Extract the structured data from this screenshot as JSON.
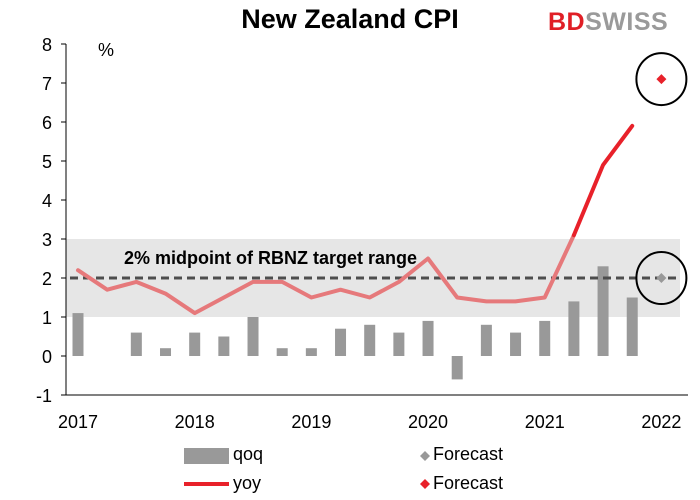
{
  "title": "New Zealand CPI",
  "brand": {
    "part1": "BD",
    "part2": "SWISS"
  },
  "colors": {
    "brand_red": "#e01f26",
    "brand_grey": "#9a9a9a"
  },
  "chart_data": {
    "type": "bar",
    "title": "New Zealand CPI",
    "unit_label": "%",
    "ylim": [
      -1,
      8
    ],
    "y_ticks": [
      -1,
      0,
      1,
      2,
      3,
      4,
      5,
      6,
      7,
      8
    ],
    "x_ticks": [
      "2017",
      "2018",
      "2019",
      "2020",
      "2021",
      "2022"
    ],
    "grid": false,
    "target_band": {
      "from": 1,
      "to": 3,
      "color": "#e6e6e6"
    },
    "midpoint_line": {
      "value": 2,
      "label": "2% midpoint of RBNZ target range",
      "color": "#4d4d4d"
    },
    "quarters": [
      "2017Q1",
      "2017Q2",
      "2017Q3",
      "2017Q4",
      "2018Q1",
      "2018Q2",
      "2018Q3",
      "2018Q4",
      "2019Q1",
      "2019Q2",
      "2019Q3",
      "2019Q4",
      "2020Q1",
      "2020Q2",
      "2020Q3",
      "2020Q4",
      "2021Q1",
      "2021Q2",
      "2021Q3",
      "2021Q4",
      "2022Q1"
    ],
    "series": [
      {
        "name": "qoq",
        "type": "bar",
        "color": "#999999",
        "values": [
          1.1,
          null,
          0.6,
          0.2,
          0.6,
          0.5,
          1.0,
          0.2,
          0.2,
          0.7,
          0.8,
          0.6,
          0.9,
          -0.6,
          0.8,
          0.6,
          0.9,
          1.4,
          2.3,
          1.5,
          null
        ]
      },
      {
        "name": "yoy",
        "type": "line",
        "color": "#e6797b",
        "values": [
          2.2,
          1.7,
          1.9,
          1.6,
          1.1,
          1.5,
          1.9,
          1.9,
          1.5,
          1.7,
          1.5,
          1.9,
          2.5,
          1.5,
          1.4,
          1.4,
          1.5,
          3.1,
          null,
          null,
          null
        ]
      },
      {
        "name": "yoy",
        "type": "line",
        "color": "#e8212a",
        "values": [
          null,
          null,
          null,
          null,
          null,
          null,
          null,
          null,
          null,
          null,
          null,
          null,
          null,
          null,
          null,
          null,
          null,
          3.1,
          4.9,
          5.9,
          null
        ]
      },
      {
        "name": "Forecast",
        "type": "marker",
        "color": "#999999",
        "values_at": {
          "2022Q1": 2.0
        }
      },
      {
        "name": "Forecast",
        "type": "marker",
        "color": "#e8212a",
        "values_at": {
          "2022Q1": 7.1
        }
      }
    ],
    "highlights": [
      {
        "at": "2022Q1",
        "value": 7.1,
        "shape": "circle"
      },
      {
        "at": "2022Q1",
        "value": 2.0,
        "shape": "circle"
      }
    ],
    "legend": [
      {
        "label": "qoq",
        "marker": "bar",
        "color": "#999999"
      },
      {
        "label": "Forecast",
        "marker": "diamond",
        "color": "#999999"
      },
      {
        "label": "yoy",
        "marker": "line",
        "color": "#e8212a"
      },
      {
        "label": "Forecast",
        "marker": "diamond",
        "color": "#e8212a"
      }
    ],
    "legend_position": "bottom"
  }
}
